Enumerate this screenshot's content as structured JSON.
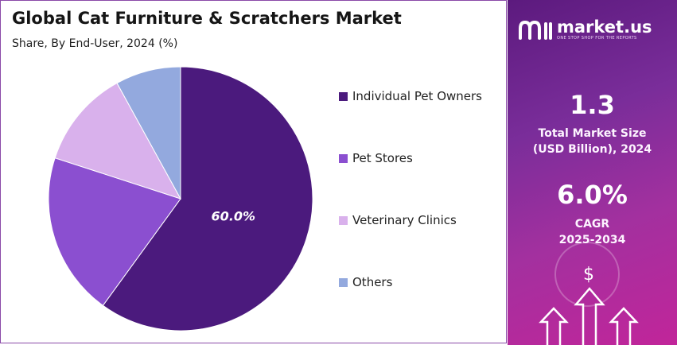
{
  "chart_data": {
    "type": "pie",
    "title": "Global Cat Furniture & Scratchers Market",
    "subtitle": "Share, By End-User, 2024 (%)",
    "categories": [
      "Individual Pet Owners",
      "Pet Stores",
      "Veterinary Clinics",
      "Others"
    ],
    "values": [
      60.0,
      20.0,
      12.0,
      8.0
    ],
    "colors": [
      "#4b1a7d",
      "#8b4fd0",
      "#d9b1ec",
      "#93a9de"
    ],
    "data_labels": [
      "60.0%",
      "",
      "",
      ""
    ],
    "legend_position": "right"
  },
  "brand": {
    "name": "market.us",
    "tagline": "ONE STOP SHOP FOR THE REPORTS"
  },
  "stats": {
    "market_size_value": "1.3",
    "market_size_label_1": "Total Market Size",
    "market_size_label_2": "(USD Billion), 2024",
    "cagr_value": "6.0%",
    "cagr_label_1": "CAGR",
    "cagr_label_2": "2025-2034"
  },
  "icons": {
    "currency": "$"
  }
}
